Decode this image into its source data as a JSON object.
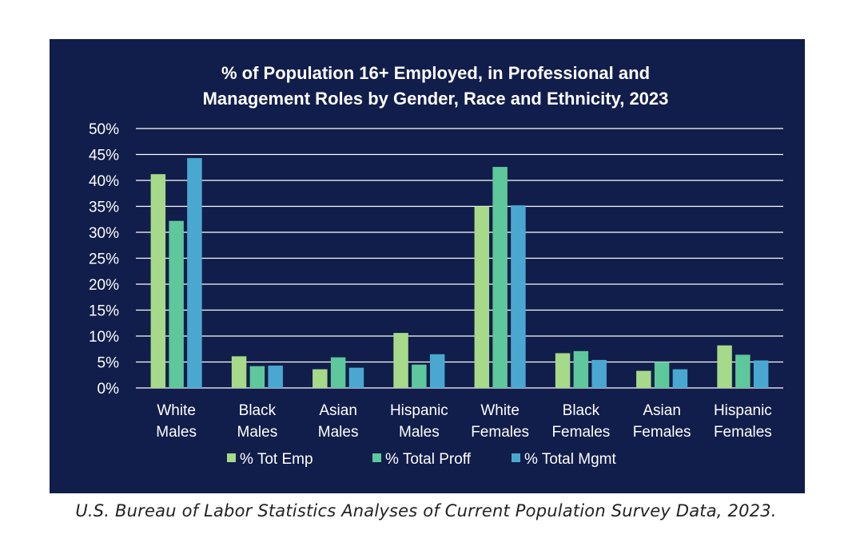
{
  "chart_data": {
    "type": "bar",
    "title": [
      "% of Population 16+ Employed, in Professional and",
      "Management Roles by Gender, Race and Ethnicity, 2023"
    ],
    "categories": [
      [
        "White",
        "Males"
      ],
      [
        "Black",
        "Males"
      ],
      [
        "Asian",
        "Males"
      ],
      [
        "Hispanic",
        "Males"
      ],
      [
        "White",
        "Females"
      ],
      [
        "Black",
        "Females"
      ],
      [
        "Asian",
        "Females"
      ],
      [
        "Hispanic",
        "Females"
      ]
    ],
    "series": [
      {
        "name": "% Tot Emp",
        "color": "#a6d98a",
        "values": [
          41.2,
          6.1,
          3.6,
          10.6,
          35.0,
          6.7,
          3.3,
          8.2
        ]
      },
      {
        "name": "% Total Proff",
        "color": "#5ec79b",
        "values": [
          32.2,
          4.2,
          5.9,
          4.5,
          42.6,
          7.1,
          5.0,
          6.4
        ]
      },
      {
        "name": "% Total Mgmt",
        "color": "#4aa8d0",
        "values": [
          44.3,
          4.3,
          3.9,
          6.5,
          35.2,
          5.4,
          3.6,
          5.3
        ]
      }
    ],
    "ylim": [
      0,
      50
    ],
    "yticks": [
      "0%",
      "5%",
      "10%",
      "15%",
      "20%",
      "25%",
      "30%",
      "35%",
      "40%",
      "45%",
      "50%"
    ],
    "grid": true,
    "legend_position": "bottom"
  },
  "caption": "U.S. Bureau of Labor Statistics Analyses of Current Population Survey Data, 2023."
}
